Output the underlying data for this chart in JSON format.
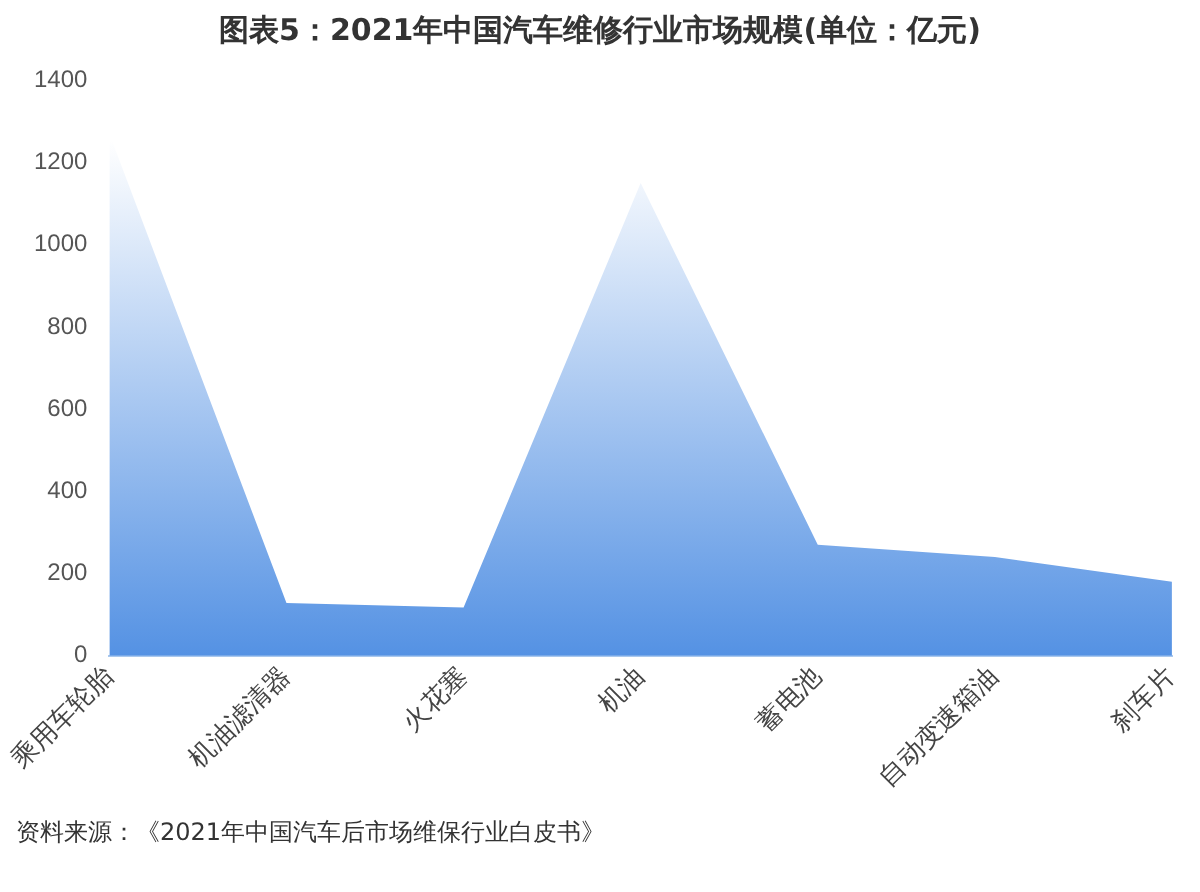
{
  "chart_data": {
    "type": "area",
    "title": "图表5：2021年中国汽车维修行业市场规模(单位：亿元)",
    "categories": [
      "乘用车轮胎",
      "机油滤清器",
      "火花塞",
      "机油",
      "蓄电池",
      "自动变速箱油",
      "刹车片"
    ],
    "values": [
      1270,
      128,
      117,
      1150,
      270,
      240,
      180
    ],
    "color": "#3f84e0",
    "ylim": [
      0,
      1400
    ],
    "yticks": [
      0,
      200,
      400,
      600,
      800,
      1000,
      1200,
      1400
    ],
    "grid": false,
    "legend": false,
    "annotations": [
      "资料来源：《2021年中国汽车后市场维保行业白皮书》"
    ]
  }
}
